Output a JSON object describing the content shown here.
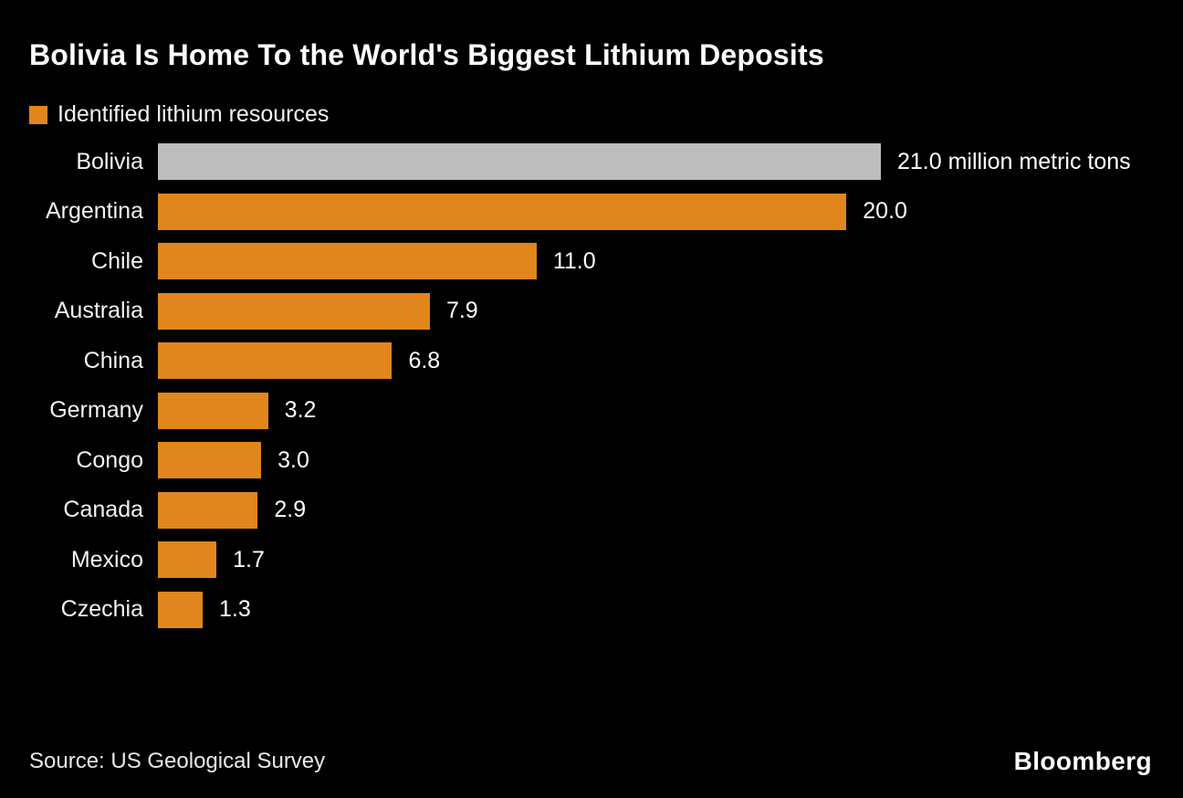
{
  "title": "Bolivia Is Home To the World's Biggest Lithium Deposits",
  "legend": {
    "label": "Identified lithium resources",
    "swatch_color": "#E0861C"
  },
  "source": "Source: US Geological Survey",
  "branding": "Bloomberg",
  "colors": {
    "background": "#000000",
    "bar": "#E0861C",
    "highlight_bar": "#BDBDBD",
    "text": "#FFFFFF"
  },
  "chart_data": {
    "type": "bar",
    "orientation": "horizontal",
    "title": "Bolivia Is Home To the World's Biggest Lithium Deposits",
    "unit": "million metric tons",
    "legend": [
      "Identified lithium resources"
    ],
    "categories": [
      "Bolivia",
      "Argentina",
      "Chile",
      "Australia",
      "China",
      "Germany",
      "Congo",
      "Canada",
      "Mexico",
      "Czechia"
    ],
    "values": [
      21.0,
      20.0,
      11.0,
      7.9,
      6.8,
      3.2,
      3.0,
      2.9,
      1.7,
      1.3
    ],
    "value_labels": [
      "21.0 million metric tons",
      "20.0",
      "11.0",
      "7.9",
      "6.8",
      "3.2",
      "3.0",
      "2.9",
      "1.7",
      "1.3"
    ],
    "highlight_index": 0,
    "xlim": [
      0,
      21
    ],
    "grid": false,
    "legend_position": "top-left"
  }
}
